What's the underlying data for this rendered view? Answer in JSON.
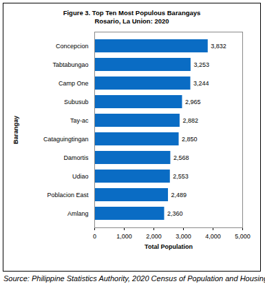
{
  "chart_data": {
    "type": "bar",
    "title": "Figure 3. Top Ten Most Populous Barangays",
    "subtitle": "Rosario, La Union: 2020",
    "xlabel": "Total Population",
    "ylabel": "Barangay",
    "caption": "Source: Philippine Statistics Authority, 2020 Census of Population and Housing",
    "orientation": "horizontal",
    "categories": [
      "Concepcion",
      "Tabtabungao",
      "Camp One",
      "Subusub",
      "Tay-ac",
      "Cataguingtingan",
      "Damortis",
      "Udiao",
      "Poblacion East",
      "Amlang"
    ],
    "values": [
      3832,
      3253,
      3244,
      2965,
      2882,
      2850,
      2568,
      2553,
      2489,
      2360
    ],
    "value_labels": [
      "3,832",
      "3,253",
      "3,244",
      "2,965",
      "2,882",
      "2,850",
      "2,568",
      "2,553",
      "2,489",
      "2,360"
    ],
    "data_labels": true,
    "color": "#0a6cc4",
    "grid": false,
    "xlim": [
      0,
      5000
    ],
    "xticks": [
      0,
      {
        "value": 1000,
        "label": "1,000"
      },
      {
        "value": 2000,
        "label": "2,000"
      },
      {
        "value": 3000,
        "label": "3,000"
      },
      {
        "value": 4000,
        "label": "4,000"
      },
      {
        "value": 5000,
        "label": "5,000"
      }
    ]
  }
}
